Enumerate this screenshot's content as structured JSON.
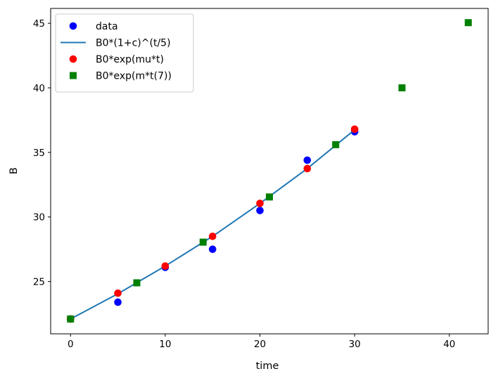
{
  "chart_data": {
    "type": "scatter",
    "title": "",
    "xlabel": "time",
    "ylabel": "B",
    "xlim": [
      -2.1,
      44.1
    ],
    "ylim": [
      20.95,
      46.15
    ],
    "xticks": [
      0,
      10,
      20,
      30,
      40
    ],
    "yticks": [
      25,
      30,
      35,
      40,
      45
    ],
    "grid": false,
    "legend_position": "top-left",
    "series": [
      {
        "name": "data",
        "kind": "markers",
        "marker": "circle",
        "color": "#0000ff",
        "x": [
          0,
          5,
          10,
          15,
          20,
          25,
          30
        ],
        "y": [
          22.1,
          23.4,
          26.1,
          27.5,
          30.5,
          34.4,
          36.6
        ]
      },
      {
        "name": "B0*(1+c)^(t/5)",
        "kind": "line",
        "color": "#1f77b4",
        "x": [
          0,
          5,
          10,
          15,
          20,
          25,
          30
        ],
        "y": [
          22.1,
          24.05,
          26.2,
          28.5,
          31.05,
          33.75,
          36.75
        ]
      },
      {
        "name": "B0*exp(mu*t)",
        "kind": "markers",
        "marker": "circle",
        "color": "#ff0000",
        "x": [
          0,
          5,
          10,
          15,
          20,
          25,
          30
        ],
        "y": [
          22.1,
          24.1,
          26.2,
          28.5,
          31.05,
          33.75,
          36.8
        ]
      },
      {
        "name": "B0*exp(m*t(7))",
        "kind": "markers",
        "marker": "square",
        "color": "#008000",
        "x": [
          0,
          7,
          14,
          21,
          28,
          35,
          42
        ],
        "y": [
          22.1,
          24.9,
          28.05,
          31.55,
          35.6,
          40.0,
          45.05
        ]
      }
    ]
  }
}
